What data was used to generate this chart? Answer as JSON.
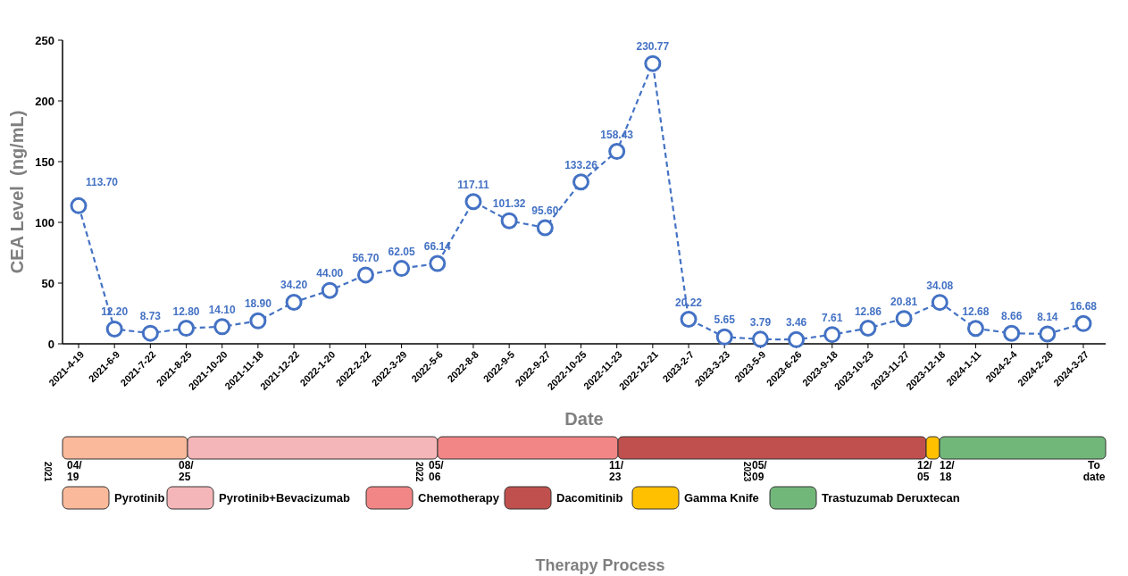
{
  "chart_data": [
    {
      "type": "line",
      "xlabel": "Date",
      "ylabel": "CEA Level  (ng/mL)",
      "categories": [
        "2021-4-19",
        "2021-6-9",
        "2021-7-22",
        "2021-8-25",
        "2021-10-20",
        "2021-11-18",
        "2021-12-22",
        "2022-1-20",
        "2022-2-22",
        "2022-3-29",
        "2022-5-6",
        "2022-8-8",
        "2022-9-5",
        "2022-9-27",
        "2022-10-25",
        "2022-11-23",
        "2022-12-21",
        "2023-2-7",
        "2023-3-23",
        "2023-5-9",
        "2023-6-26",
        "2023-9-18",
        "2023-10-23",
        "2023-11-27",
        "2023-12-18",
        "2024-1-11",
        "2024-2-4",
        "2024-2-28",
        "2024-3-27"
      ],
      "series": [
        {
          "color": "#4472c4",
          "values": [
            113.7,
            12.2,
            8.73,
            12.8,
            14.1,
            18.9,
            34.2,
            44.0,
            56.7,
            62.05,
            66.14,
            117.11,
            101.32,
            95.6,
            133.26,
            158.43,
            230.77,
            20.22,
            5.65,
            3.79,
            3.46,
            7.61,
            12.86,
            20.81,
            34.08,
            12.68,
            8.66,
            8.14,
            16.68
          ],
          "value_labels": [
            "113.70",
            "12.20",
            "8.73",
            "12.80",
            "14.10",
            "18.90",
            "34.20",
            "44.00",
            "56.70",
            "62.05",
            "66.14",
            "117.11",
            "101.32",
            "95.60",
            "133.26",
            "158.43",
            "230.77",
            "20.22",
            "5.65",
            "3.79",
            "3.46",
            "7.61",
            "12.86",
            "20.81",
            "34.08",
            "12.68",
            "8.66",
            "8.14",
            "16.68"
          ]
        }
      ],
      "ylim": [
        0,
        250
      ],
      "yticks": [
        0,
        50,
        100,
        150,
        200,
        250
      ],
      "grid": false,
      "marker": "circle",
      "line_style": "dashed"
    },
    {
      "type": "other",
      "xlabel": "Therapy Process",
      "categories": [
        "Pyrotinib",
        "Pyrotinib+Bevacizumab",
        "Chemotherapy",
        "Dacomitinib",
        "Gamma Knife",
        "Trastuzumab Deruxtecan"
      ],
      "colors": [
        "#f9b99a",
        "#f4b6b8",
        "#f28686",
        "#c0504d",
        "#ffc000",
        "#72b77a"
      ],
      "annotations": [
        "04/19",
        "08/25",
        "05/06",
        "11/23",
        "05/09",
        "12/05",
        "12/18",
        "To date",
        "2021",
        "2022",
        "2023"
      ]
    }
  ]
}
